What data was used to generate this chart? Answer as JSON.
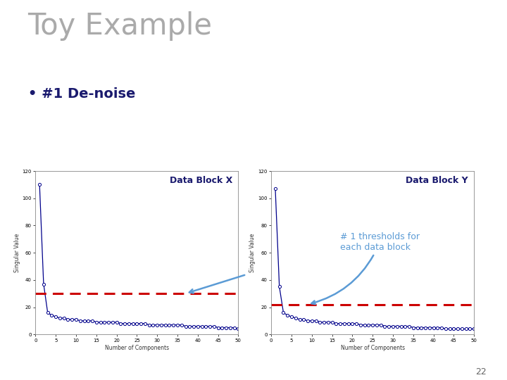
{
  "title": "Toy Example",
  "subtitle": "• #1 De-noise",
  "title_color": "#aaaaaa",
  "subtitle_color": "#1a1a6e",
  "background_color": "#ffffff",
  "page_number": "22",
  "plot_x": {
    "title": "Data Block X",
    "xlabel": "Number of Components",
    "ylabel": "Singular Value",
    "xlim": [
      0,
      50
    ],
    "ylim": [
      0,
      120
    ],
    "xticks": [
      0,
      5,
      10,
      15,
      20,
      25,
      30,
      35,
      40,
      45,
      50
    ],
    "yticks": [
      0,
      20,
      40,
      60,
      80,
      100,
      120
    ],
    "line_color": "#00008B",
    "threshold": 30,
    "threshold_color": "#CC0000",
    "data_y": [
      110,
      37,
      16,
      14,
      13,
      12,
      12,
      11,
      11,
      11,
      10,
      10,
      10,
      10,
      9,
      9,
      9,
      9,
      9,
      9,
      8,
      8,
      8,
      8,
      8,
      8,
      8,
      7,
      7,
      7,
      7,
      7,
      7,
      7,
      7,
      7,
      6,
      6,
      6,
      6,
      6,
      6,
      6,
      6,
      5,
      5,
      5,
      5,
      5,
      4
    ]
  },
  "plot_y": {
    "title": "Data Block Y",
    "xlabel": "Number of Components",
    "ylabel": "Singular Value",
    "xlim": [
      0,
      50
    ],
    "ylim": [
      0,
      120
    ],
    "xticks": [
      0,
      5,
      10,
      15,
      20,
      25,
      30,
      35,
      40,
      45,
      50
    ],
    "yticks": [
      0,
      20,
      40,
      60,
      80,
      100,
      120
    ],
    "line_color": "#00008B",
    "threshold": 22,
    "threshold_color": "#CC0000",
    "data_y": [
      107,
      35,
      16,
      14,
      13,
      12,
      11,
      11,
      10,
      10,
      10,
      9,
      9,
      9,
      9,
      8,
      8,
      8,
      8,
      8,
      8,
      7,
      7,
      7,
      7,
      7,
      7,
      6,
      6,
      6,
      6,
      6,
      6,
      6,
      5,
      5,
      5,
      5,
      5,
      5,
      5,
      5,
      4,
      4,
      4,
      4,
      4,
      4,
      4,
      4
    ]
  },
  "annotation_text": "# 1 thresholds for\neach data block",
  "annotation_color": "#5b9bd5",
  "annotation_fontsize": 9,
  "title_fontsize": 30,
  "subtitle_fontsize": 14,
  "plot_title_fontsize": 9,
  "axis_label_fontsize": 5.5,
  "tick_fontsize": 5
}
